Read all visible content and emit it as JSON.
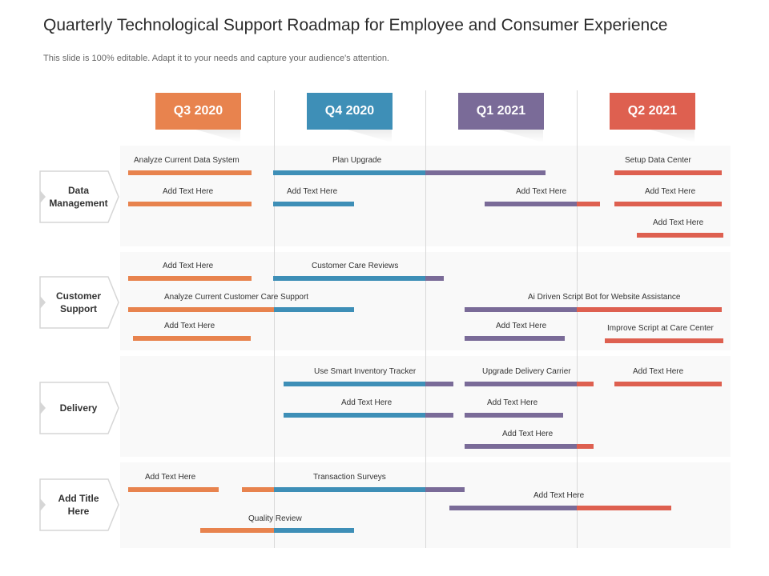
{
  "header": {
    "title": "Quarterly Technological Support Roadmap for Employee and Consumer Experience",
    "subtitle": "This slide is 100% editable. Adapt it to your needs and capture your audience's attention."
  },
  "colors": {
    "q3": "#E8834E",
    "q4": "#3E8FB7",
    "q1": "#7A6B98",
    "q2": "#DE6050",
    "band": "#F9F9F9"
  },
  "quarters": [
    {
      "label": "Q3 2020"
    },
    {
      "label": "Q4 2020"
    },
    {
      "label": "Q1 2021"
    },
    {
      "label": "Q2 2021"
    }
  ],
  "categories": [
    {
      "label": "Data Management"
    },
    {
      "label": "Customer Support"
    },
    {
      "label": "Delivery"
    },
    {
      "label": "Add Title Here"
    }
  ],
  "tasks": [
    {
      "label": "Analyze Current Data System"
    },
    {
      "label": "Plan Upgrade"
    },
    {
      "label": "Setup Data Center"
    },
    {
      "label": "Add Text Here"
    },
    {
      "label": "Add Text Here"
    },
    {
      "label": "Add Text Here"
    },
    {
      "label": "Add Text Here"
    },
    {
      "label": "Add Text Here"
    },
    {
      "label": "Add Text Here"
    },
    {
      "label": "Customer Care Reviews"
    },
    {
      "label": "Analyze Current Customer Care Support"
    },
    {
      "label": "Ai Driven Script Bot for Website Assistance"
    },
    {
      "label": "Add Text Here"
    },
    {
      "label": "Add Text Here"
    },
    {
      "label": "Improve Script at Care Center"
    },
    {
      "label": "Use Smart Inventory Tracker"
    },
    {
      "label": "Upgrade Delivery Carrier"
    },
    {
      "label": "Add Text Here"
    },
    {
      "label": "Add Text Here"
    },
    {
      "label": "Add Text Here"
    },
    {
      "label": "Add Text Here"
    },
    {
      "label": "Add Text Here"
    },
    {
      "label": "Transaction Surveys"
    },
    {
      "label": "Add Text Here"
    },
    {
      "label": "Quality Review"
    }
  ]
}
